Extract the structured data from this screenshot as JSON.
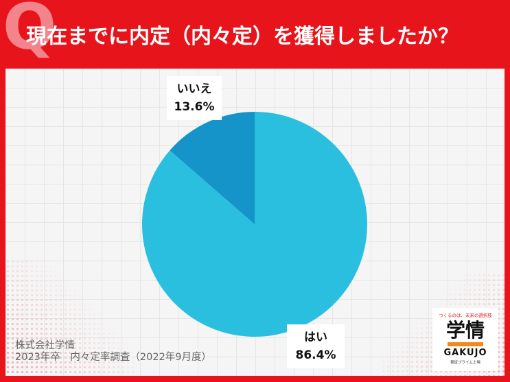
{
  "header": {
    "q_mark": "Q",
    "question": "現在までに内定（内々定）を獲得しましたか？"
  },
  "chart_data": {
    "type": "pie",
    "title": "現在までに内定（内々定）を獲得しましたか？",
    "start_angle_deg": 0,
    "direction": "clockwise",
    "slices": [
      {
        "label": "はい",
        "value": 86.4,
        "value_label": "86.4%",
        "color": "#2abfdf"
      },
      {
        "label": "いいえ",
        "value": 13.6,
        "value_label": "13.6%",
        "color": "#1494c8"
      }
    ]
  },
  "source": {
    "line1": "株式会社学情",
    "line2": "2023年卒　内々定率調査（2022年9月度）"
  },
  "logo": {
    "tagline": "つくるのは、未来の選択肢",
    "name": "学情",
    "name_en": "GAKUJO",
    "sub": "東証プライム上場",
    "accent_color": "#f08a1c"
  },
  "colors": {
    "brand_red": "#e8141c",
    "panel_bg": "#f5f5f5"
  }
}
